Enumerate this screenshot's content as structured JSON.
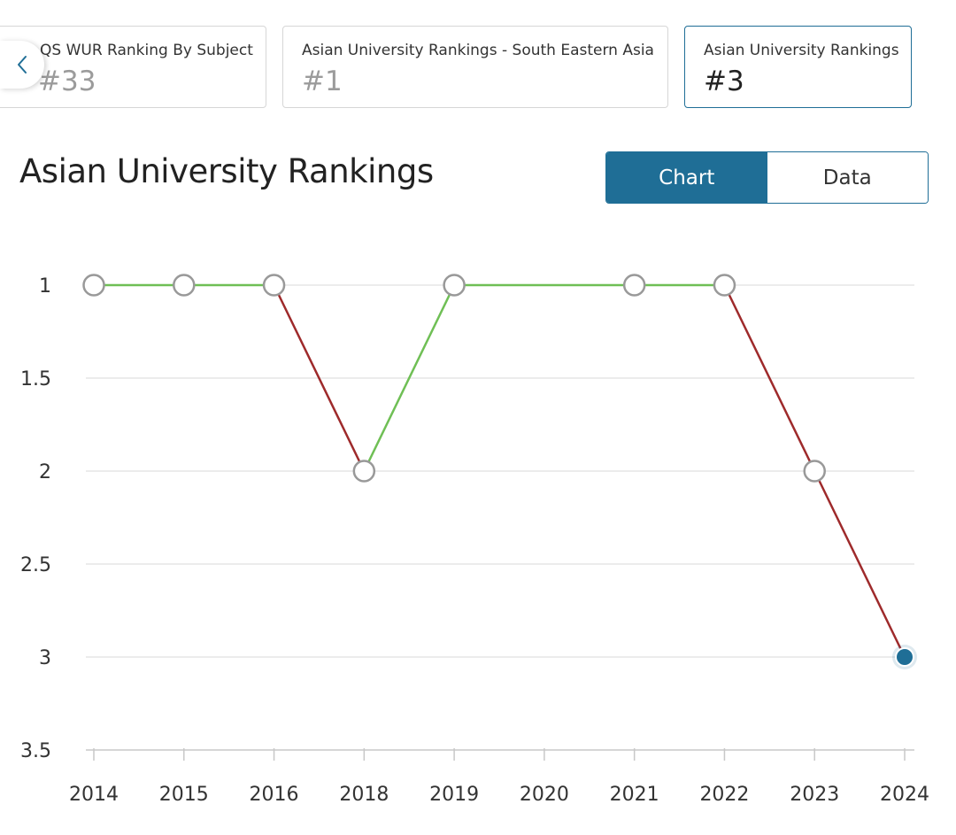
{
  "ranking_cards": [
    {
      "title": "QS WUR Ranking By Subject",
      "rank": "#33"
    },
    {
      "title": "Asian University Rankings - South Eastern Asia",
      "rank": "#1"
    },
    {
      "title": "Asian University Rankings",
      "rank": "#3"
    }
  ],
  "nav": {
    "prev_icon": "chevron-left-icon"
  },
  "section": {
    "title": "Asian University Rankings"
  },
  "view_toggle": {
    "chart_label": "Chart",
    "data_label": "Data",
    "selected": "Chart"
  },
  "colors": {
    "accent": "#1f6e96",
    "improve": "#6fbf55",
    "decline": "#9e2a2b",
    "point_stroke": "#999999",
    "grid": "#e6e6e6"
  },
  "chart_data": {
    "type": "line",
    "title": "Asian University Rankings",
    "xlabel": "",
    "ylabel": "",
    "categories": [
      "2014",
      "2015",
      "2016",
      "2018",
      "2019",
      "2020",
      "2021",
      "2022",
      "2023",
      "2024"
    ],
    "series": [
      {
        "values": [
          1,
          1,
          1,
          2,
          1,
          null,
          1,
          1,
          2,
          3
        ]
      }
    ],
    "y_ticks": [
      1,
      1.5,
      2,
      2.5,
      3,
      3.5
    ],
    "ylim": [
      1,
      3.5
    ],
    "y_inverted": true,
    "grid": true,
    "highlighted_point": "2024"
  }
}
